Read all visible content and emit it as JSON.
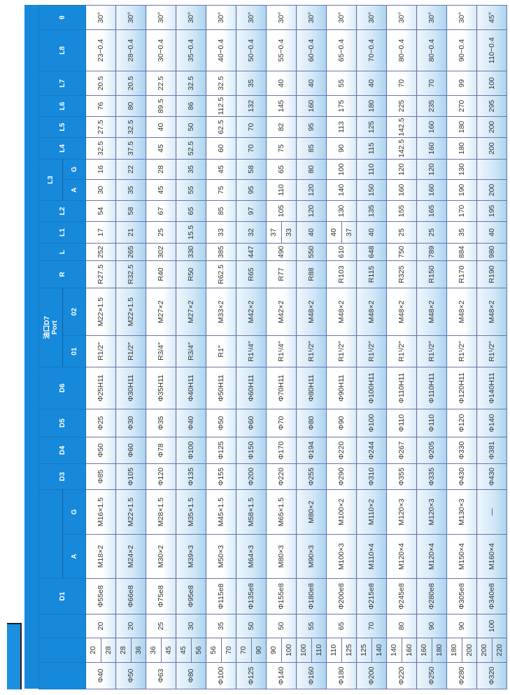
{
  "header": {
    "d1": "D1",
    "thread_a": "A",
    "thread_g": "G",
    "d3": "D3",
    "d4": "D4",
    "d5": "D5",
    "d6": "D6",
    "port_cn": "油口D7",
    "port_en": "Port",
    "port_01": "01",
    "port_02": "02",
    "r": "R",
    "l": "L",
    "l1": "L1",
    "l2": "L2",
    "l3": "L3",
    "l3_a": "A",
    "l3_g": "G",
    "l4": "L4",
    "l5": "L5",
    "l6": "L6",
    "l7": "L7",
    "l8": "L8",
    "theta": "θ"
  },
  "colors": {
    "header_blue": "#1689da",
    "row_tint": "#cfe6f7",
    "grid": "#6d74a8"
  },
  "rows": [
    {
      "bore": "Φ40",
      "stroke": [
        "20",
        "28"
      ],
      "rod": "20",
      "d1": "Φ55e8",
      "a": "M18×2",
      "g": "M16×1.5",
      "d3": "Φ85",
      "d4": "Φ50",
      "d5": "Φ25",
      "d6": "Φ25H11",
      "p01": "R1/2″",
      "p02": "M22×1.5",
      "r": "R27.5",
      "l": "252",
      "l1": "17",
      "l2": "54",
      "l3a": "30",
      "l3g": "16",
      "l4": "32.5",
      "l5": "27.5",
      "l6": "76",
      "l7": "20.5",
      "l8": "23−0.4",
      "theta": "30°"
    },
    {
      "bore": "Φ50",
      "stroke": [
        "28",
        "36"
      ],
      "rod": "20",
      "d1": "Φ66e8",
      "a": "M24×2",
      "g": "M22×1.5",
      "d3": "Φ105",
      "d4": "Φ60",
      "d5": "Φ30",
      "d6": "Φ30H11",
      "p01": "R1/2″",
      "p02": "M22×1.5",
      "r": "R32.5",
      "l": "265",
      "l1": "21",
      "l2": "58",
      "l3a": "35",
      "l3g": "22",
      "l4": "37.5",
      "l5": "32.5",
      "l6": "80",
      "l7": "20.5",
      "l8": "28−0.4",
      "theta": "30°"
    },
    {
      "bore": "Φ63",
      "stroke": [
        "36",
        "45"
      ],
      "rod": "25",
      "d1": "Φ75e8",
      "a": "M30×2",
      "g": "M28×1.5",
      "d3": "Φ120",
      "d4": "Φ78",
      "d5": "Φ35",
      "d6": "Φ35H11",
      "p01": "R3/4″",
      "p02": "M27×2",
      "r": "R40",
      "l": "302",
      "l1": "25",
      "l2": "67",
      "l3a": "45",
      "l3g": "28",
      "l4": "45",
      "l5": "40",
      "l6": "89.5",
      "l7": "22.5",
      "l8": "30−0.4",
      "theta": "30°"
    },
    {
      "bore": "Φ80",
      "stroke": [
        "45",
        "56"
      ],
      "rod": "30",
      "d1": "Φ95e8",
      "a": "M39×3",
      "g": "M35×1.5",
      "d3": "Φ135",
      "d4": "Φ100",
      "d5": "Φ40",
      "d6": "Φ40H11",
      "p01": "R3/4″",
      "p02": "M27×2",
      "r": "R50",
      "l": "330",
      "l1": "15.5",
      "l2": "65",
      "l3a": "55",
      "l3g": "35",
      "l4": "52.5",
      "l5": "50",
      "l6": "86",
      "l7": "32.5",
      "l8": "35−0.4",
      "theta": "30°"
    },
    {
      "bore": "Φ100",
      "stroke": [
        "56",
        "70"
      ],
      "rod": "35",
      "d1": "Φ115e8",
      "a": "M50×3",
      "g": "M45×1.5",
      "d3": "Φ155",
      "d4": "Φ125",
      "d5": "Φ50",
      "d6": "Φ50H11",
      "p01": "R1″",
      "p02": "M33×2",
      "r": "R62.5",
      "l": "385",
      "l1": "33",
      "l2": "85",
      "l3a": "75",
      "l3g": "45",
      "l4": "60",
      "l5": "62.5",
      "l6": "112.5",
      "l7": "32.5",
      "l8": "40−0.4",
      "theta": "30°"
    },
    {
      "bore": "Φ125",
      "stroke": [
        "70",
        "90"
      ],
      "rod": "50",
      "d1": "Φ135e8",
      "a": "M64×3",
      "g": "M58×1.5",
      "d3": "Φ200",
      "d4": "Φ150",
      "d5": "Φ60",
      "d6": "Φ60H11",
      "p01": "R1¹/4″",
      "p02": "M42×2",
      "r": "R65",
      "l": "447",
      "l1": "32",
      "l2": "97",
      "l3a": "95",
      "l3g": "58",
      "l4": "70",
      "l5": "70",
      "l6": "132",
      "l7": "35",
      "l8": "50−0.4",
      "theta": "30°"
    },
    {
      "bore": "Φ140",
      "stroke": [
        "90",
        "100"
      ],
      "rod": "50",
      "d1": "Φ155e8",
      "a": "M80×3",
      "g": "M65×1.5",
      "d3": "Φ220",
      "d4": "Φ170",
      "d5": "Φ70",
      "d6": "Φ70H11",
      "p01": "R1¹/4″",
      "p02": "M42×2",
      "r": "R77",
      "l": "490",
      "l1": [
        "37",
        "33"
      ],
      "l2": "105",
      "l3a": "110",
      "l3g": "65",
      "l4": "75",
      "l5": "82",
      "l6": "145",
      "l7": "40",
      "l8": "55−0.4",
      "theta": "30°"
    },
    {
      "bore": "Φ160",
      "stroke": [
        "100",
        "110"
      ],
      "rod": "55",
      "d1": "Φ180e8",
      "a": "M90×3",
      "g": "M80×2",
      "d3": "Φ255",
      "d4": "Φ194",
      "d5": "Φ80",
      "d6": "Φ80H11",
      "p01": "R1¹/2″",
      "p02": "M48×2",
      "r": "R88",
      "l": "550",
      "l1": "40",
      "l2": "120",
      "l3a": "120",
      "l3g": "80",
      "l4": "85",
      "l5": "95",
      "l6": "160",
      "l7": "40",
      "l8": "60−0.4",
      "theta": "30°"
    },
    {
      "bore": "Φ180",
      "stroke": [
        "110",
        "125"
      ],
      "rod": "65",
      "d1": "Φ200e8",
      "a": "M100×3",
      "g": "M100×2",
      "d3": "Φ290",
      "d4": "Φ220",
      "d5": "Φ90",
      "d6": "Φ90H11",
      "p01": "R1¹/2″",
      "p02": "M48×2",
      "r": "R103",
      "l": "610",
      "l1": [
        "40",
        "37"
      ],
      "l2": "130",
      "l3a": "140",
      "l3g": "100",
      "l4": "90",
      "l5": "113",
      "l6": "175",
      "l7": "55",
      "l8": "65−0.4",
      "theta": "30°"
    },
    {
      "bore": "Φ200",
      "stroke": [
        "125",
        "140"
      ],
      "rod": "70",
      "d1": "Φ215e8",
      "a": "M110×4",
      "g": "M110×2",
      "d3": "Φ310",
      "d4": "Φ244",
      "d5": "Φ100",
      "d6": "Φ100H11",
      "p01": "R1¹/2″",
      "p02": "M48×2",
      "r": "R115",
      "l": "648",
      "l1": "40",
      "l2": "135",
      "l3a": "150",
      "l3g": "110",
      "l4": "115",
      "l5": "125",
      "l6": "180",
      "l7": "40",
      "l8": "70−0.4",
      "theta": "30°"
    },
    {
      "bore": "Φ220",
      "stroke": [
        "140",
        "160"
      ],
      "rod": "80",
      "d1": "Φ245e8",
      "a": "M120×4",
      "g": "M120×3",
      "d3": "Φ355",
      "d4": "Φ267",
      "d5": "Φ110",
      "d6": "Φ110H11",
      "p01": "R1¹/2″",
      "p02": "M48×2",
      "r": "R325",
      "l": "750",
      "l1": "25",
      "l2": "155",
      "l3a": "160",
      "l3g": "120",
      "l4": "142.5",
      "l5": "142.5",
      "l6": "225",
      "l7": "70",
      "l8": "80−0.4",
      "theta": "30°"
    },
    {
      "bore": "Φ250",
      "stroke": [
        "160",
        "180"
      ],
      "rod": "90",
      "d1": "Φ280e8",
      "a": "M120×4",
      "g": "M120×3",
      "d3": "Φ335",
      "d4": "Φ205",
      "d5": "Φ110",
      "d6": "Φ110H11",
      "p01": "R1¹/2″",
      "p02": "M48×2",
      "r": "R150",
      "l": "789",
      "l1": "25",
      "l2": "165",
      "l3a": "160",
      "l3g": "120",
      "l4": "160",
      "l5": "160",
      "l6": "235",
      "l7": "70",
      "l8": "80−0.4",
      "theta": "30°"
    },
    {
      "bore": "Φ280",
      "stroke": [
        "180",
        "200"
      ],
      "rod": "90",
      "d1": "Φ305e8",
      "a": "M150×4",
      "g": "M130×3",
      "d3": "Φ430",
      "d4": "Φ330",
      "d5": "Φ120",
      "d6": "Φ120H11",
      "p01": "R1¹/2″",
      "p02": "M48×2",
      "r": "R170",
      "l": "884",
      "l1": "35",
      "l2": "170",
      "l3a": "190",
      "l3g": "130",
      "l4": "180",
      "l5": "180",
      "l6": "270",
      "l7": "99",
      "l8": "90−0.4",
      "theta": "30°"
    },
    {
      "bore": "Φ320",
      "stroke": [
        "200",
        "220"
      ],
      "rod": "100",
      "d1": "Φ340e8",
      "a": "M160×4",
      "g": "—",
      "d3": "Φ430",
      "d4": "Φ381",
      "d5": "Φ140",
      "d6": "Φ140H11",
      "p01": "R1¹/2″",
      "p02": "M48×2",
      "r": "R190",
      "l": "980",
      "l1": "40",
      "l2": "195",
      "l3a": "200",
      "l3g": "",
      "l4": "200",
      "l5": "200",
      "l6": "295",
      "l7": "100",
      "l8": "110−0.4",
      "theta": "45°"
    }
  ]
}
